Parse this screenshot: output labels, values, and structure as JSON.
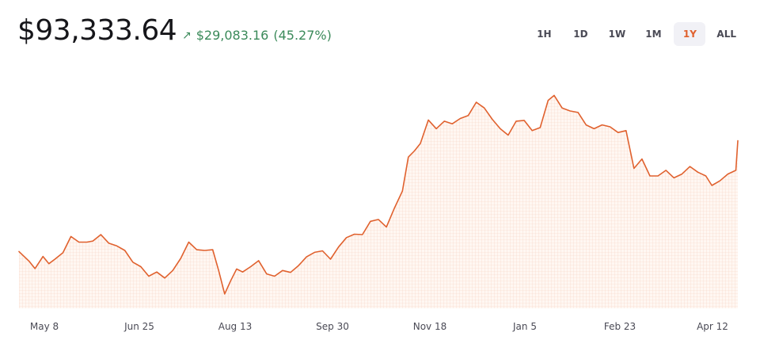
{
  "header": {
    "price": "$93,333.64",
    "change_arrow": "↗",
    "change_amount": "$29,083.16",
    "change_percent": "(45.27%)"
  },
  "ranges": [
    {
      "label": "1H",
      "active": false
    },
    {
      "label": "1D",
      "active": false
    },
    {
      "label": "1W",
      "active": false
    },
    {
      "label": "1M",
      "active": false
    },
    {
      "label": "1Y",
      "active": true
    },
    {
      "label": "ALL",
      "active": false
    }
  ],
  "colors": {
    "line": "#e0612e",
    "fill": "#fdebe2",
    "grid": "#f7d3c2",
    "positive": "#3b8a5a",
    "accent": "#e0612e"
  },
  "chart_data": {
    "type": "area",
    "title": "",
    "xlabel": "",
    "ylabel": "",
    "x_ticks": [
      "May 8",
      "Jun 25",
      "Aug 13",
      "Sep 30",
      "Nov 18",
      "Jan 5",
      "Feb 23",
      "Apr 12"
    ],
    "x_range": [
      "Apr 27",
      "Apr 22"
    ],
    "y_range": [
      49000,
      110000
    ],
    "grid": false,
    "legend": "none",
    "series": [
      {
        "x": [
          "Apr 27",
          "May 2",
          "May 5",
          "May 9",
          "May 12",
          "May 15",
          "May 19",
          "May 23",
          "May 27",
          "May 31",
          "Jun 3",
          "Jun 7",
          "Jun 11",
          "Jun 15",
          "Jun 19",
          "Jun 23",
          "Jun 27",
          "Jul 1",
          "Jul 5",
          "Jul 9",
          "Jul 13",
          "Jul 17",
          "Jul 21",
          "Jul 25",
          "Jul 29",
          "Aug 2",
          "Aug 5",
          "Aug 8",
          "Aug 11",
          "Aug 14",
          "Aug 17",
          "Aug 21",
          "Aug 25",
          "Aug 29",
          "Sep 2",
          "Sep 6",
          "Sep 10",
          "Sep 14",
          "Sep 18",
          "Sep 22",
          "Sep 26",
          "Sep 30",
          "Oct 4",
          "Oct 8",
          "Oct 12",
          "Oct 16",
          "Oct 20",
          "Oct 24",
          "Oct 28",
          "Nov 1",
          "Nov 5",
          "Nov 8",
          "Nov 11",
          "Nov 14",
          "Nov 18",
          "Nov 22",
          "Nov 26",
          "Nov 30",
          "Dec 4",
          "Dec 8",
          "Dec 12",
          "Dec 16",
          "Dec 20",
          "Dec 24",
          "Dec 28",
          "Jan 1",
          "Jan 5",
          "Jan 9",
          "Jan 13",
          "Jan 17",
          "Jan 20",
          "Jan 24",
          "Jan 28",
          "Feb 1",
          "Feb 5",
          "Feb 9",
          "Feb 13",
          "Feb 17",
          "Feb 21",
          "Feb 25",
          "Mar 1",
          "Mar 5",
          "Mar 9",
          "Mar 13",
          "Mar 17",
          "Mar 21",
          "Mar 25",
          "Mar 29",
          "Apr 2",
          "Apr 6",
          "Apr 9",
          "Apr 13",
          "Apr 17",
          "Apr 21",
          "Apr 22"
        ],
        "values": [
          64000,
          61500,
          59500,
          62700,
          60800,
          62000,
          63700,
          68000,
          66500,
          66500,
          66800,
          68500,
          66200,
          65500,
          64300,
          61200,
          60000,
          57500,
          58600,
          57000,
          59000,
          62200,
          66500,
          64500,
          64300,
          64500,
          59000,
          52800,
          56300,
          59400,
          58600,
          60000,
          61600,
          58100,
          57500,
          59000,
          58500,
          60300,
          62600,
          63800,
          64200,
          62000,
          65200,
          67700,
          68600,
          68500,
          72000,
          72500,
          70500,
          75500,
          80000,
          89000,
          90600,
          92600,
          98800,
          96500,
          98500,
          97800,
          99200,
          100000,
          103500,
          102000,
          99000,
          96500,
          94800,
          98500,
          98700,
          96000,
          96800,
          104000,
          105300,
          102000,
          101200,
          100800,
          97500,
          96500,
          97500,
          97000,
          95500,
          96000,
          86000,
          88500,
          84000,
          84000,
          85500,
          83500,
          84500,
          86500,
          85000,
          84000,
          81500,
          82700,
          84500,
          85500,
          93333
        ]
      }
    ]
  }
}
